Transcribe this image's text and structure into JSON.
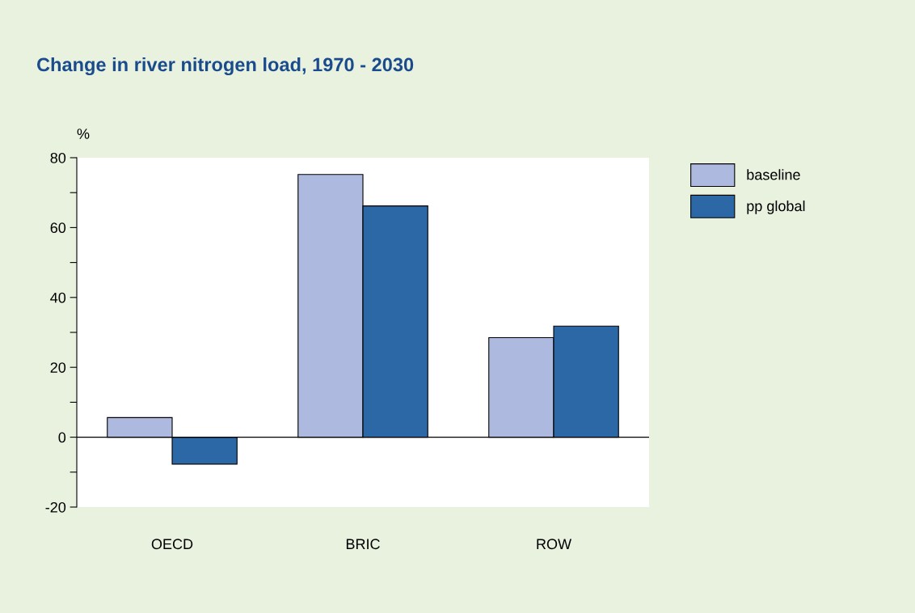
{
  "chart_data": {
    "type": "bar",
    "title": "Change in river nitrogen load, 1970 - 2030",
    "ylabel": "%",
    "categories": [
      "OECD",
      "BRIC",
      "ROW"
    ],
    "series": [
      {
        "name": "baseline",
        "color": "#aeb9df",
        "values": [
          5.6,
          75.2,
          28.5
        ]
      },
      {
        "name": "pp global",
        "color": "#2c68a6",
        "values": [
          -7.7,
          66.2,
          31.8
        ]
      }
    ],
    "ylim": [
      -20,
      80
    ],
    "yticks": [
      -20,
      {
        "value": -10,
        "label": null
      },
      0,
      {
        "value": 10,
        "label": null
      },
      20,
      {
        "value": 30,
        "label": null
      },
      40,
      {
        "value": 50,
        "label": null
      },
      60,
      {
        "value": 70,
        "label": null
      },
      80
    ],
    "ref_lines": [
      {
        "axis": "y",
        "value": 0,
        "label": null,
        "color": "#000000"
      }
    ],
    "grid": false,
    "legend": "top right"
  }
}
